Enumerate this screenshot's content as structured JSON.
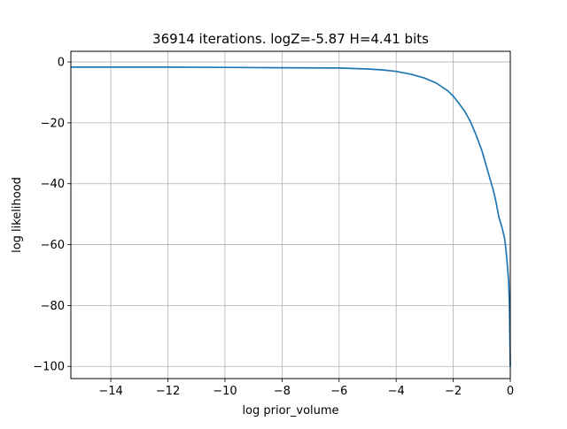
{
  "chart_data": {
    "type": "line",
    "title": "36914 iterations. logZ=-5.87 H=4.41 bits",
    "xlabel": "log prior_volume",
    "ylabel": "log likelihood",
    "xlim": [
      -15.4,
      0.0
    ],
    "ylim": [
      -104,
      3.5
    ],
    "grid": true,
    "xticks": [
      -14,
      -12,
      -10,
      -8,
      -6,
      -4,
      -2,
      0
    ],
    "yticks": [
      0,
      -20,
      -40,
      -60,
      -80,
      -100
    ],
    "xtick_labels": [
      "−14",
      "−12",
      "−10",
      "−8",
      "−6",
      "−4",
      "−2",
      "0"
    ],
    "ytick_labels": [
      "0",
      "−20",
      "−40",
      "−60",
      "−80",
      "−100"
    ],
    "line_color": "#1f77b4",
    "series": [
      {
        "x": [
          -15.4,
          -14.0,
          -12.0,
          -10.0,
          -8.0,
          -6.0,
          -5.0,
          -4.5,
          -4.0,
          -3.5,
          -3.0,
          -2.6,
          -2.2,
          -2.0,
          -1.8,
          -1.6,
          -1.4,
          -1.2,
          -1.0,
          -0.8,
          -0.6,
          -0.5,
          -0.4,
          -0.3,
          -0.2,
          -0.15,
          -0.1,
          -0.06,
          -0.03,
          0.0
        ],
        "y": [
          -1.7,
          -1.7,
          -1.7,
          -1.8,
          -1.9,
          -2.0,
          -2.3,
          -2.6,
          -3.1,
          -4.0,
          -5.3,
          -6.9,
          -9.4,
          -11.2,
          -13.6,
          -16.2,
          -19.5,
          -24.0,
          -29.0,
          -35.5,
          -42.0,
          -46.0,
          -51.0,
          -54.0,
          -58.0,
          -62.0,
          -67.0,
          -72.0,
          -80.0,
          -100.0
        ]
      }
    ]
  }
}
